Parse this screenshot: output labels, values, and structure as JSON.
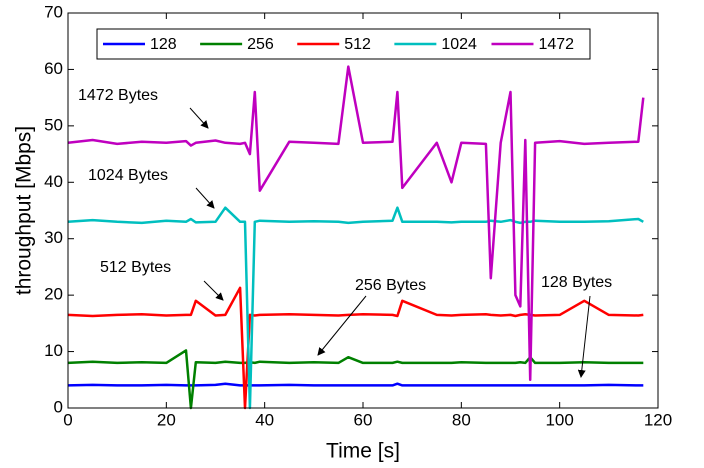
{
  "chart_data": {
    "type": "line",
    "xlabel": "Time [s]",
    "ylabel": "throughput [Mbps]",
    "xlim": [
      0,
      120
    ],
    "ylim": [
      0,
      70
    ],
    "xticks": [
      0,
      20,
      40,
      60,
      80,
      100,
      120
    ],
    "yticks": [
      0,
      10,
      20,
      30,
      40,
      50,
      60,
      70
    ],
    "legend": "top-left",
    "x": [
      0,
      5,
      10,
      15,
      20,
      24,
      25,
      26,
      30,
      32,
      35,
      36,
      37,
      38,
      39,
      45,
      50,
      55,
      57,
      60,
      66,
      67,
      68,
      75,
      78,
      80,
      85,
      86,
      88,
      90,
      91,
      92,
      93,
      94,
      95,
      100,
      105,
      110,
      116,
      117
    ],
    "series": [
      {
        "name": "128",
        "color": "#0000ff",
        "values": [
          4.0,
          4.1,
          4.0,
          4.0,
          4.1,
          4.0,
          4.0,
          4.0,
          4.1,
          4.3,
          4.0,
          4.0,
          4.0,
          4.0,
          4.0,
          4.1,
          4.0,
          4.0,
          4.0,
          4.0,
          4.0,
          4.3,
          4.0,
          4.0,
          4.0,
          4.0,
          4.0,
          4.0,
          4.0,
          4.0,
          4.0,
          4.0,
          4.0,
          4.0,
          4.0,
          4.0,
          4.0,
          4.1,
          4.0,
          4.0
        ]
      },
      {
        "name": "256",
        "color": "#008000",
        "values": [
          8.0,
          8.2,
          8.0,
          8.1,
          8.0,
          10.2,
          0,
          8.1,
          8.0,
          8.2,
          8.0,
          8.0,
          8.1,
          8.0,
          8.2,
          8.0,
          8.1,
          8.0,
          9.0,
          8.0,
          8.0,
          8.2,
          8.0,
          8.0,
          8.0,
          8.1,
          8.0,
          8.0,
          8.0,
          8.0,
          8.0,
          8.1,
          8.0,
          9.0,
          8.0,
          8.0,
          8.1,
          8.0,
          8.0,
          8.0
        ]
      },
      {
        "name": "512",
        "color": "#ff0000",
        "values": [
          16.5,
          16.3,
          16.5,
          16.6,
          16.4,
          16.5,
          16.5,
          19.0,
          16.4,
          16.5,
          21.3,
          0,
          16.5,
          16.4,
          16.5,
          16.6,
          16.5,
          16.4,
          16.5,
          16.6,
          16.5,
          16.3,
          19.0,
          16.5,
          16.4,
          16.5,
          16.6,
          16.5,
          16.4,
          16.5,
          16.3,
          16.5,
          16.6,
          16.5,
          16.4,
          16.5,
          19.0,
          16.5,
          16.4,
          16.5
        ]
      },
      {
        "name": "1024",
        "color": "#00bfbf",
        "values": [
          33.0,
          33.3,
          33.0,
          32.8,
          33.2,
          33.0,
          33.5,
          32.9,
          33.0,
          35.5,
          33.0,
          33.0,
          0,
          33.0,
          33.2,
          33.0,
          33.1,
          33.0,
          32.8,
          33.0,
          33.2,
          35.5,
          33.0,
          33.0,
          32.9,
          33.0,
          33.0,
          33.2,
          33.0,
          33.3,
          33.0,
          32.8,
          33.0,
          33.0,
          33.2,
          33.0,
          33.0,
          33.1,
          33.5,
          33.0
        ]
      },
      {
        "name": "1472",
        "color": "#bf00bf",
        "values": [
          47.0,
          47.5,
          46.8,
          47.2,
          47.0,
          47.3,
          46.5,
          47.0,
          47.4,
          47.0,
          46.8,
          47.0,
          45.0,
          56.0,
          38.5,
          47.2,
          47.0,
          46.8,
          60.5,
          47.0,
          47.2,
          56.0,
          39.0,
          47.0,
          40.0,
          47.0,
          46.8,
          23.0,
          47.0,
          56.0,
          20.0,
          18.0,
          47.5,
          5.0,
          47.0,
          47.3,
          46.8,
          47.0,
          47.2,
          55.0
        ]
      }
    ],
    "annotations": [
      "1472 Bytes",
      "1024 Bytes",
      "512 Bytes",
      "256 Bytes",
      "128 Bytes"
    ]
  }
}
